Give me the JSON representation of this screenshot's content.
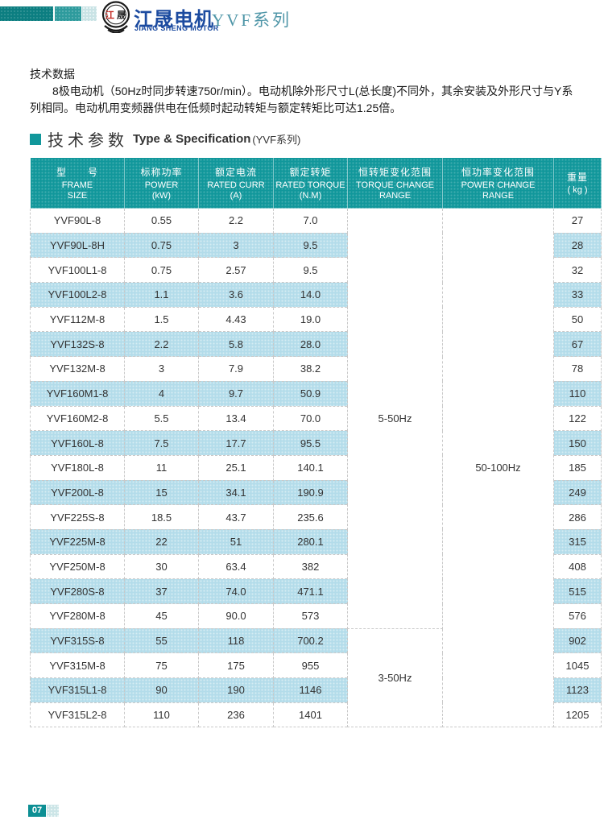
{
  "header": {
    "brand_cn": "江晟电机",
    "brand_en": "JIANG SHENG MOTOR",
    "seal_left": "江",
    "seal_right": "晟",
    "series": "YVF系列"
  },
  "intro": {
    "title": "技术数据",
    "body": "8极电动机（50Hz时同步转速750r/min）。电动机除外形尺寸L(总长度)不同外，其余安装及外形尺寸与Y系列相同。电动机用变频器供电在低频时起动转矩与额定转矩比可达1.25倍。"
  },
  "section": {
    "title_cn": "技术参数",
    "title_en": "Type & Specification",
    "title_suffix": "(YVF系列)"
  },
  "table": {
    "columns": [
      {
        "cn": "型　　号",
        "lines": [
          "FRAME",
          "SIZE"
        ]
      },
      {
        "cn": "标称功率",
        "lines": [
          "POWER",
          "(kW)"
        ]
      },
      {
        "cn": "额定电流",
        "lines": [
          "RATED CURR",
          "(A)"
        ]
      },
      {
        "cn": "额定转矩",
        "lines": [
          "RATED TORQUE",
          "(N.M)"
        ]
      },
      {
        "cn": "恒转矩变化范围",
        "lines": [
          "TORQUE CHANGE",
          "RANGE"
        ]
      },
      {
        "cn": "恒功率变化范围",
        "lines": [
          "POWER CHANGE",
          "RANGE"
        ]
      },
      {
        "cn": "重量",
        "lines": [
          "( kg )"
        ]
      }
    ],
    "rows": [
      [
        "YVF90L-8",
        "0.55",
        "2.2",
        "7.0",
        "27"
      ],
      [
        "YVF90L-8H",
        "0.75",
        "3",
        "9.5",
        "28"
      ],
      [
        "YVF100L1-8",
        "0.75",
        "2.57",
        "9.5",
        "32"
      ],
      [
        "YVF100L2-8",
        "1.1",
        "3.6",
        "14.0",
        "33"
      ],
      [
        "YVF112M-8",
        "1.5",
        "4.43",
        "19.0",
        "50"
      ],
      [
        "YVF132S-8",
        "2.2",
        "5.8",
        "28.0",
        "67"
      ],
      [
        "YVF132M-8",
        "3",
        "7.9",
        "38.2",
        "78"
      ],
      [
        "YVF160M1-8",
        "4",
        "9.7",
        "50.9",
        "110"
      ],
      [
        "YVF160M2-8",
        "5.5",
        "13.4",
        "70.0",
        "122"
      ],
      [
        "YVF160L-8",
        "7.5",
        "17.7",
        "95.5",
        "150"
      ],
      [
        "YVF180L-8",
        "11",
        "25.1",
        "140.1",
        "185"
      ],
      [
        "YVF200L-8",
        "15",
        "34.1",
        "190.9",
        "249"
      ],
      [
        "YVF225S-8",
        "18.5",
        "43.7",
        "235.6",
        "286"
      ],
      [
        "YVF225M-8",
        "22",
        "51",
        "280.1",
        "315"
      ],
      [
        "YVF250M-8",
        "30",
        "63.4",
        "382",
        "408"
      ],
      [
        "YVF280S-8",
        "37",
        "74.0",
        "471.1",
        "515"
      ],
      [
        "YVF280M-8",
        "45",
        "90.0",
        "573",
        "576"
      ],
      [
        "YVF315S-8",
        "55",
        "118",
        "700.2",
        "902"
      ],
      [
        "YVF315M-8",
        "75",
        "175",
        "955",
        "1045"
      ],
      [
        "YVF315L1-8",
        "90",
        "190",
        "1146",
        "1123"
      ],
      [
        "YVF315L2-8",
        "110",
        "236",
        "1401",
        "1205"
      ]
    ],
    "merges": {
      "torque": [
        {
          "label": "5-50Hz",
          "start": 0,
          "span": 17
        },
        {
          "label": "3-50Hz",
          "start": 17,
          "span": 4
        }
      ],
      "power": [
        {
          "label": "50-100Hz",
          "start": 0,
          "span": 21
        }
      ]
    }
  },
  "footer": {
    "page": "07"
  },
  "colors": {
    "accent_teal": "#11979b",
    "row_alt_blue": "#b3dcea",
    "brand_blue": "#1c4ba0",
    "series_teal": "#4f96a8",
    "footer_teal": "#0d8f94"
  }
}
